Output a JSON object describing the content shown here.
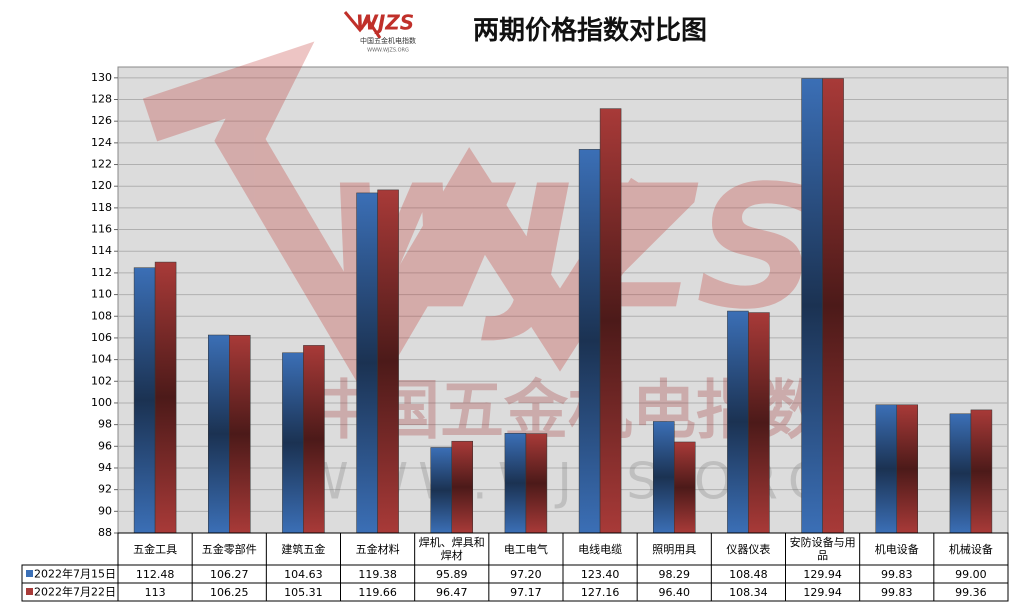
{
  "logo": {
    "mark": "WJZS",
    "name": "中国五金机电指数",
    "site": "WWW.WJZS.ORG"
  },
  "chart_data": {
    "type": "bar",
    "title": "两期价格指数对比图",
    "categories": [
      "五金工具",
      "五金零部件",
      "建筑五金",
      "五金材料",
      "焊机、焊具和焊材",
      "电工电气",
      "电线电缆",
      "照明用具",
      "仪器仪表",
      "安防设备与用品",
      "机电设备",
      "机械设备"
    ],
    "series": [
      {
        "name": "2022年7月15日",
        "color": "#3b6fb6",
        "values": [
          112.48,
          106.27,
          104.63,
          119.38,
          95.89,
          97.2,
          123.4,
          98.29,
          108.48,
          129.94,
          99.83,
          99.0
        ],
        "value_labels": [
          "112.48",
          "106.27",
          "104.63",
          "119.38",
          "95.89",
          "97.20",
          "123.40",
          "98.29",
          "108.48",
          "129.94",
          "99.83",
          "99.00"
        ]
      },
      {
        "name": "2022年7月22日",
        "color": "#a83a38",
        "values": [
          113,
          106.25,
          105.31,
          119.66,
          96.47,
          97.17,
          127.16,
          96.4,
          108.34,
          129.94,
          99.83,
          99.36
        ],
        "value_labels": [
          "113",
          "106.25",
          "105.31",
          "119.66",
          "96.47",
          "97.17",
          "127.16",
          "96.40",
          "108.34",
          "129.94",
          "99.83",
          "99.36"
        ]
      }
    ],
    "ylim": [
      88,
      131
    ],
    "yticks": [
      88,
      90,
      92,
      94,
      96,
      98,
      100,
      102,
      104,
      106,
      108,
      110,
      112,
      114,
      116,
      118,
      120,
      122,
      124,
      126,
      128,
      130
    ],
    "grid": true
  }
}
